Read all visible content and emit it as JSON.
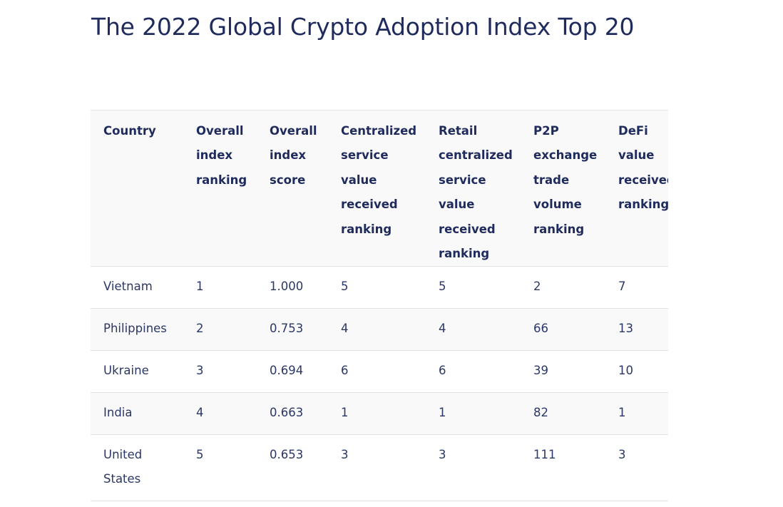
{
  "page": {
    "title": "The 2022 Global Crypto Adoption Index Top 20"
  },
  "table": {
    "headers": [
      "Country",
      "Overall index ranking",
      "Overall index score",
      "Centralized service value received ranking",
      "Retail centralized service value received ranking",
      "P2P exchange trade volume ranking",
      "DeFi value received ranking"
    ],
    "rows": [
      [
        "Vietnam",
        "1",
        "1.000",
        "5",
        "5",
        "2",
        "7"
      ],
      [
        "Philippines",
        "2",
        "0.753",
        "4",
        "4",
        "66",
        "13"
      ],
      [
        "Ukraine",
        "3",
        "0.694",
        "6",
        "6",
        "39",
        "10"
      ],
      [
        "India",
        "4",
        "0.663",
        "1",
        "1",
        "82",
        "1"
      ],
      [
        "United States",
        "5",
        "0.653",
        "3",
        "3",
        "111",
        "3"
      ]
    ]
  }
}
